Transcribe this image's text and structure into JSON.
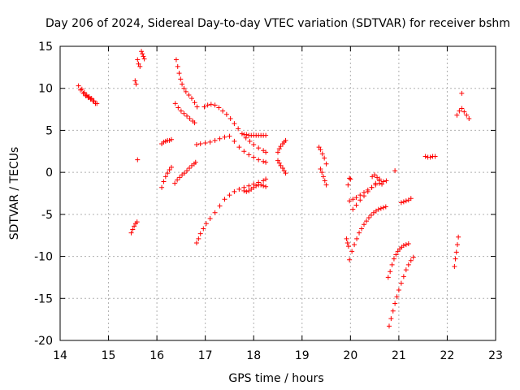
{
  "chart_data": {
    "type": "scatter",
    "title": "Day 206 of 2024, Sidereal Day-to-day VTEC variation (SDTVAR) for receiver bshm",
    "xlabel": "GPS time / hours",
    "ylabel": "SDTVAR / TECUs",
    "xlim": [
      14,
      23
    ],
    "ylim": [
      -20,
      15
    ],
    "xticks": [
      14,
      15,
      16,
      17,
      18,
      19,
      20,
      21,
      22,
      23
    ],
    "yticks": [
      -20,
      -15,
      -10,
      -5,
      0,
      5,
      10,
      15
    ],
    "grid": true,
    "marker": "+",
    "color": "#ff0000",
    "segments": [
      {
        "x": [
          14.38,
          14.45,
          14.5,
          14.55,
          14.6,
          14.65,
          14.7,
          14.76
        ],
        "y": [
          10.3,
          9.9,
          9.5,
          9.2,
          9.0,
          8.8,
          8.5,
          8.2
        ]
      },
      {
        "x": [
          14.42,
          14.48,
          14.53,
          14.58,
          14.63,
          14.68,
          14.73
        ],
        "y": [
          9.8,
          9.4,
          9.1,
          8.9,
          8.7,
          8.5,
          8.2
        ]
      },
      {
        "x": [
          15.47,
          15.5,
          15.53,
          15.56,
          15.59
        ],
        "y": [
          -7.2,
          -6.8,
          -6.4,
          -6.1,
          -5.9
        ]
      },
      {
        "x": [
          15.55,
          15.57
        ],
        "y": [
          10.9,
          10.5
        ]
      },
      {
        "x": [
          15.6
        ],
        "y": [
          1.5
        ]
      },
      {
        "x": [
          15.6,
          15.62,
          15.65
        ],
        "y": [
          13.4,
          12.9,
          12.6
        ]
      },
      {
        "x": [
          15.68,
          15.7,
          15.72,
          15.74
        ],
        "y": [
          14.4,
          14.1,
          13.8,
          13.5
        ]
      },
      {
        "x": [
          16.1,
          16.14,
          16.18,
          16.22,
          16.26,
          16.3
        ],
        "y": [
          3.4,
          3.6,
          3.7,
          3.8,
          3.8,
          3.9
        ]
      },
      {
        "x": [
          16.1,
          16.14,
          16.18,
          16.22,
          16.26,
          16.3
        ],
        "y": [
          -1.8,
          -1.1,
          -0.5,
          -0.1,
          0.3,
          0.6
        ]
      },
      {
        "x": [
          16.37,
          16.42,
          16.47,
          16.52,
          16.57,
          16.62,
          16.67,
          16.72,
          16.77,
          16.8
        ],
        "y": [
          -1.3,
          -0.9,
          -0.6,
          -0.3,
          -0.1,
          0.2,
          0.5,
          0.8,
          1.0,
          1.2
        ]
      },
      {
        "x": [
          16.38,
          16.44,
          16.5,
          16.56,
          16.62,
          16.68,
          16.74,
          16.78
        ],
        "y": [
          8.2,
          7.7,
          7.3,
          7.0,
          6.7,
          6.4,
          6.1,
          5.9
        ]
      },
      {
        "x": [
          16.4,
          16.43,
          16.46,
          16.49,
          16.52,
          16.56,
          16.6,
          16.66,
          16.72,
          16.78,
          16.83
        ],
        "y": [
          13.4,
          12.6,
          11.8,
          11.1,
          10.5,
          10.0,
          9.6,
          9.2,
          8.8,
          8.3,
          7.8
        ]
      },
      {
        "x": [
          16.82,
          16.86,
          16.9,
          16.96,
          17.02,
          17.1,
          17.2,
          17.3,
          17.4,
          17.5,
          17.6,
          17.7,
          17.8,
          17.9,
          18.0,
          18.1,
          18.2,
          18.25
        ],
        "y": [
          -8.4,
          -7.9,
          -7.3,
          -6.7,
          -6.1,
          -5.5,
          -4.8,
          -4.0,
          -3.2,
          -2.7,
          -2.3,
          -2.0,
          -1.8,
          -1.6,
          -1.4,
          -1.2,
          -1.0,
          -0.8
        ]
      },
      {
        "x": [
          16.82,
          16.9,
          17.0,
          17.1,
          17.2,
          17.3,
          17.4,
          17.5,
          17.6,
          17.7,
          17.8,
          17.9,
          18.0,
          18.1,
          18.2,
          18.25
        ],
        "y": [
          3.3,
          3.4,
          3.5,
          3.6,
          3.8,
          4.0,
          4.2,
          4.3,
          3.7,
          3.0,
          2.5,
          2.1,
          1.8,
          1.5,
          1.3,
          1.2
        ]
      },
      {
        "x": [
          16.98,
          17.05,
          17.12,
          17.2,
          17.28,
          17.36,
          17.44,
          17.52,
          17.6,
          17.68,
          17.76,
          17.84,
          17.92,
          18.0,
          18.1,
          18.2,
          18.25
        ],
        "y": [
          7.8,
          8.0,
          8.1,
          8.0,
          7.7,
          7.3,
          6.9,
          6.4,
          5.8,
          5.2,
          4.6,
          4.1,
          3.7,
          3.3,
          2.9,
          2.6,
          2.4
        ]
      },
      {
        "x": [
          17.8,
          17.85,
          17.9,
          17.95,
          18.0,
          18.05,
          18.1,
          18.15,
          18.2,
          18.25
        ],
        "y": [
          4.5,
          4.5,
          4.4,
          4.4,
          4.4,
          4.4,
          4.4,
          4.4,
          4.4,
          4.4
        ]
      },
      {
        "x": [
          17.8,
          17.85,
          17.9,
          17.95,
          18.0,
          18.05,
          18.1,
          18.15,
          18.2,
          18.25
        ],
        "y": [
          -2.2,
          -2.3,
          -2.2,
          -2.0,
          -1.8,
          -1.6,
          -1.5,
          -1.5,
          -1.6,
          -1.7
        ]
      },
      {
        "x": [
          18.5,
          18.53,
          18.56,
          18.6,
          18.63,
          18.66
        ],
        "y": [
          2.4,
          2.8,
          3.1,
          3.4,
          3.6,
          3.8
        ]
      },
      {
        "x": [
          18.5,
          18.53,
          18.56,
          18.6,
          18.63,
          18.66
        ],
        "y": [
          1.4,
          1.1,
          0.8,
          0.5,
          0.2,
          -0.1
        ]
      },
      {
        "x": [
          19.35,
          19.38,
          19.42,
          19.46,
          19.5
        ],
        "y": [
          3.0,
          2.7,
          2.2,
          1.7,
          1.0
        ]
      },
      {
        "x": [
          19.38,
          19.41,
          19.44,
          19.47,
          19.5
        ],
        "y": [
          0.4,
          0.0,
          -0.5,
          -1.0,
          -1.5
        ]
      },
      {
        "x": [
          19.92,
          19.94,
          19.96
        ],
        "y": [
          -7.9,
          -8.4,
          -8.8
        ]
      },
      {
        "x": [
          19.95
        ],
        "y": [
          -1.5
        ]
      },
      {
        "x": [
          19.98,
          20.0
        ],
        "y": [
          -0.7,
          -0.8
        ]
      },
      {
        "x": [
          19.98,
          20.03,
          20.08,
          20.13,
          20.18,
          20.23,
          20.28,
          20.33,
          20.38,
          20.43,
          20.48,
          20.53,
          20.58,
          20.63,
          20.68,
          20.73
        ],
        "y": [
          -10.4,
          -9.4,
          -8.6,
          -7.9,
          -7.2,
          -6.7,
          -6.2,
          -5.8,
          -5.4,
          -5.1,
          -4.8,
          -4.6,
          -4.4,
          -4.3,
          -4.2,
          -4.1
        ]
      },
      {
        "x": [
          19.98,
          20.05,
          20.12,
          20.2,
          20.28,
          20.36,
          20.44,
          20.52,
          20.6,
          20.68,
          20.74
        ],
        "y": [
          -3.4,
          -3.2,
          -3.0,
          -2.7,
          -2.4,
          -2.1,
          -1.8,
          -1.5,
          -1.3,
          -1.1,
          -1.0
        ]
      },
      {
        "x": [
          20.05,
          20.12,
          20.2,
          20.28,
          20.36,
          20.44,
          20.52,
          20.6
        ],
        "y": [
          -4.4,
          -3.9,
          -3.3,
          -2.8,
          -2.3,
          -1.8,
          -1.3,
          -0.8
        ]
      },
      {
        "x": [
          20.45,
          20.5,
          20.55,
          20.6,
          20.65
        ],
        "y": [
          -0.5,
          -0.3,
          -0.6,
          -1.0,
          -1.4
        ]
      },
      {
        "x": [
          20.92
        ],
        "y": [
          0.2
        ]
      },
      {
        "x": [
          20.78,
          20.82,
          20.86,
          20.9,
          20.94,
          20.98,
          21.02,
          21.06,
          21.1,
          21.15,
          21.2
        ],
        "y": [
          -12.5,
          -11.8,
          -11.0,
          -10.3,
          -9.8,
          -9.4,
          -9.1,
          -8.9,
          -8.7,
          -8.6,
          -8.5
        ]
      },
      {
        "x": [
          20.8,
          20.84,
          20.88,
          20.92,
          20.96,
          21.0,
          21.05,
          21.1,
          21.15,
          21.2,
          21.25,
          21.3
        ],
        "y": [
          -18.3,
          -17.4,
          -16.5,
          -15.6,
          -14.8,
          -14.0,
          -13.2,
          -12.4,
          -11.6,
          -11.0,
          -10.5,
          -10.1
        ]
      },
      {
        "x": [
          21.05,
          21.1,
          21.15,
          21.2,
          21.25
        ],
        "y": [
          -3.6,
          -3.5,
          -3.4,
          -3.3,
          -3.1
        ]
      },
      {
        "x": [
          21.55,
          21.6,
          21.65,
          21.7,
          21.75
        ],
        "y": [
          1.9,
          1.8,
          1.8,
          1.9,
          1.9
        ]
      },
      {
        "x": [
          22.15,
          22.17,
          22.19,
          22.21,
          22.23
        ],
        "y": [
          -11.2,
          -10.3,
          -9.5,
          -8.6,
          -7.7
        ]
      },
      {
        "x": [
          22.2,
          22.25,
          22.3,
          22.35,
          22.4,
          22.45
        ],
        "y": [
          6.8,
          7.3,
          7.6,
          7.2,
          6.8,
          6.4
        ]
      },
      {
        "x": [
          22.3
        ],
        "y": [
          9.4
        ]
      }
    ]
  }
}
